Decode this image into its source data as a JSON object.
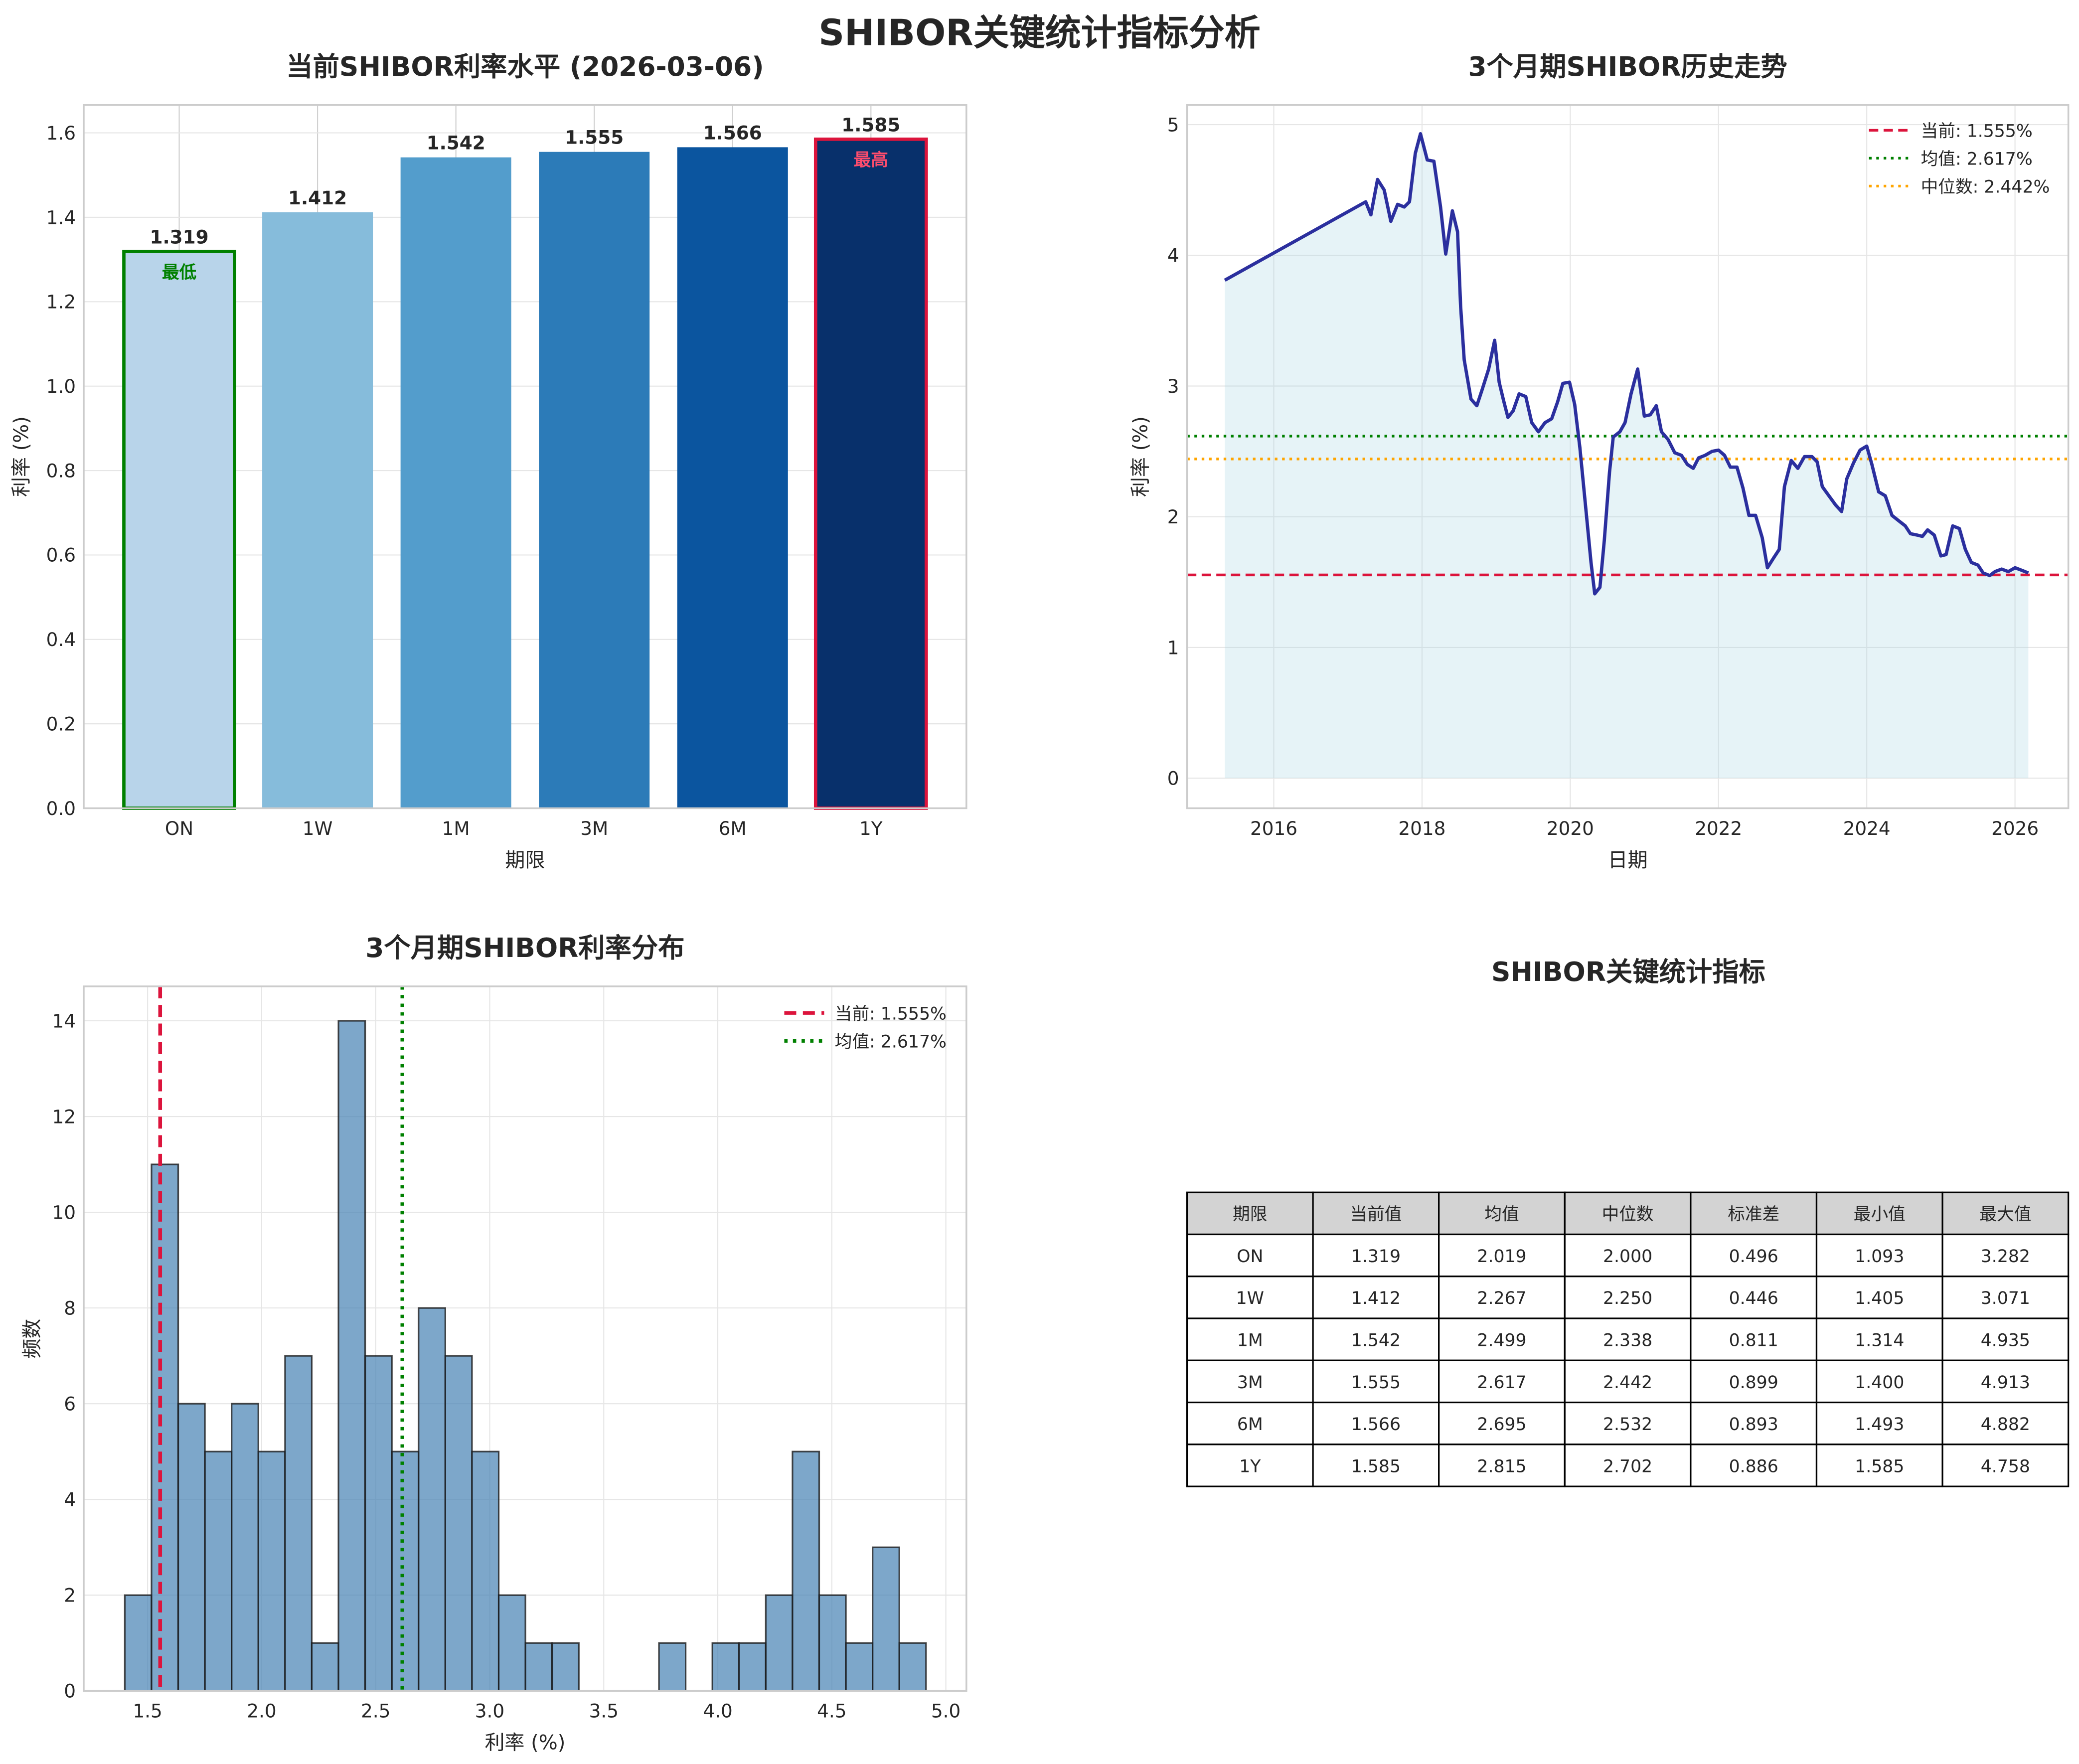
{
  "suptitle": "SHIBOR关键统计指标分析",
  "colors": {
    "bars": [
      "#b8d4ea",
      "#86bcdb",
      "#539dcc",
      "#2c7bb8",
      "#0b559f",
      "#08306b"
    ],
    "lowest_edge": "#008000",
    "highest_edge": "#dc143c",
    "line": "#2b2f9e",
    "fill": "#add8e6",
    "current": "#dc143c",
    "mean": "#008000",
    "median": "#ffa500",
    "hist": "#4682b4",
    "table_header": "#d3d3d3"
  },
  "chart_data": [
    {
      "type": "bar",
      "title": "当前SHIBOR利率水平 (2026-03-06)",
      "xlabel": "期限",
      "ylabel": "利率 (%)",
      "categories": [
        "ON",
        "1W",
        "1M",
        "3M",
        "6M",
        "1Y"
      ],
      "values": [
        1.319,
        1.412,
        1.542,
        1.555,
        1.566,
        1.585
      ],
      "value_labels": [
        "1.319",
        "1.412",
        "1.542",
        "1.555",
        "1.566",
        "1.585"
      ],
      "annotations": [
        {
          "category": "ON",
          "text": "最低"
        },
        {
          "category": "1Y",
          "text": "最高"
        }
      ],
      "ylim": [
        0,
        1.666
      ],
      "yticks": [
        0.0,
        0.2,
        0.4,
        0.6,
        0.8,
        1.0,
        1.2,
        1.4,
        1.6
      ],
      "ytick_labels": [
        "0.0",
        "0.2",
        "0.4",
        "0.6",
        "0.8",
        "1.0",
        "1.2",
        "1.4",
        "1.6"
      ],
      "grid": true
    },
    {
      "type": "line",
      "title": "3个月期SHIBOR历史走势",
      "xlabel": "日期",
      "ylabel": "利率 (%)",
      "xlim": [
        2014.83,
        2026.72
      ],
      "ylim": [
        -0.23,
        5.15
      ],
      "xticks": [
        2016,
        2018,
        2020,
        2022,
        2024,
        2026
      ],
      "xtick_labels": [
        "2016",
        "2018",
        "2020",
        "2022",
        "2024",
        "2026"
      ],
      "yticks": [
        0,
        1,
        2,
        3,
        4,
        5
      ],
      "ytick_labels": [
        "0",
        "1",
        "2",
        "3",
        "4",
        "5"
      ],
      "x": [
        2015.34,
        2017.24,
        2017.31,
        2017.4,
        2017.49,
        2017.58,
        2017.67,
        2017.76,
        2017.83,
        2017.91,
        2017.98,
        2018.07,
        2018.16,
        2018.25,
        2018.32,
        2018.41,
        2018.48,
        2018.52,
        2018.57,
        2018.66,
        2018.74,
        2018.81,
        2018.9,
        2018.98,
        2019.04,
        2019.1,
        2019.16,
        2019.23,
        2019.31,
        2019.4,
        2019.48,
        2019.57,
        2019.66,
        2019.75,
        2019.83,
        2019.9,
        2019.99,
        2020.06,
        2020.13,
        2020.21,
        2020.28,
        2020.33,
        2020.4,
        2020.46,
        2020.53,
        2020.58,
        2020.67,
        2020.74,
        2020.82,
        2020.91,
        2021.0,
        2021.08,
        2021.16,
        2021.23,
        2021.32,
        2021.41,
        2021.5,
        2021.58,
        2021.66,
        2021.73,
        2021.82,
        2021.91,
        2022.0,
        2022.08,
        2022.16,
        2022.25,
        2022.33,
        2022.41,
        2022.5,
        2022.59,
        2022.66,
        2022.75,
        2022.82,
        2022.89,
        2022.98,
        2023.07,
        2023.16,
        2023.26,
        2023.33,
        2023.4,
        2023.49,
        2023.58,
        2023.66,
        2023.73,
        2023.82,
        2023.91,
        2024.0,
        2024.07,
        2024.16,
        2024.25,
        2024.34,
        2024.43,
        2024.52,
        2024.59,
        2024.68,
        2024.75,
        2024.82,
        2024.91,
        2025.0,
        2025.07,
        2025.16,
        2025.25,
        2025.33,
        2025.41,
        2025.5,
        2025.57,
        2025.66,
        2025.73,
        2025.82,
        2025.91,
        2026.0,
        2026.09,
        2026.18
      ],
      "y": [
        3.81,
        4.41,
        4.31,
        4.58,
        4.5,
        4.26,
        4.39,
        4.37,
        4.41,
        4.78,
        4.93,
        4.73,
        4.72,
        4.37,
        4.01,
        4.34,
        4.18,
        3.61,
        3.2,
        2.9,
        2.85,
        2.97,
        3.13,
        3.35,
        3.03,
        2.89,
        2.76,
        2.81,
        2.94,
        2.92,
        2.72,
        2.65,
        2.72,
        2.75,
        2.88,
        3.02,
        3.03,
        2.86,
        2.53,
        2.06,
        1.65,
        1.41,
        1.46,
        1.82,
        2.34,
        2.61,
        2.65,
        2.72,
        2.94,
        3.13,
        2.77,
        2.78,
        2.85,
        2.65,
        2.59,
        2.49,
        2.47,
        2.4,
        2.37,
        2.45,
        2.47,
        2.5,
        2.51,
        2.47,
        2.38,
        2.38,
        2.22,
        2.01,
        2.01,
        1.84,
        1.61,
        1.69,
        1.75,
        2.23,
        2.43,
        2.37,
        2.46,
        2.46,
        2.42,
        2.23,
        2.16,
        2.09,
        2.04,
        2.29,
        2.41,
        2.51,
        2.54,
        2.4,
        2.19,
        2.16,
        2.01,
        1.97,
        1.93,
        1.87,
        1.86,
        1.85,
        1.9,
        1.86,
        1.7,
        1.71,
        1.93,
        1.91,
        1.75,
        1.65,
        1.63,
        1.57,
        1.55,
        1.58,
        1.6,
        1.58,
        1.61,
        1.59,
        1.57
      ],
      "hlines": [
        {
          "label": "当前: 1.555%",
          "value": 1.555,
          "style": "dashed",
          "color_key": "current"
        },
        {
          "label": "均值: 2.617%",
          "value": 2.617,
          "style": "dotted",
          "color_key": "mean"
        },
        {
          "label": "中位数: 2.442%",
          "value": 2.442,
          "style": "dotted",
          "color_key": "median"
        }
      ],
      "legend": "top-right",
      "grid": true
    },
    {
      "type": "bar",
      "subtype": "histogram",
      "title": "3个月期SHIBOR利率分布",
      "xlabel": "利率 (%)",
      "ylabel": "频数",
      "bin_start": 1.4,
      "bin_end": 4.913,
      "counts": [
        2,
        11,
        6,
        5,
        6,
        5,
        7,
        1,
        14,
        7,
        5,
        8,
        7,
        5,
        2,
        1,
        1,
        0,
        0,
        0,
        1,
        0,
        1,
        1,
        2,
        5,
        2,
        1,
        3,
        1
      ],
      "xlim": [
        1.22,
        5.09
      ],
      "ylim": [
        0,
        14.72
      ],
      "xticks": [
        1.5,
        2.0,
        2.5,
        3.0,
        3.5,
        4.0,
        4.5,
        5.0
      ],
      "xtick_labels": [
        "1.5",
        "2.0",
        "2.5",
        "3.0",
        "3.5",
        "4.0",
        "4.5",
        "5.0"
      ],
      "yticks": [
        0,
        2,
        4,
        6,
        8,
        10,
        12,
        14
      ],
      "ytick_labels": [
        "0",
        "2",
        "4",
        "6",
        "8",
        "10",
        "12",
        "14"
      ],
      "vlines": [
        {
          "label": "当前: 1.555%",
          "value": 1.555,
          "style": "dashed",
          "color_key": "current"
        },
        {
          "label": "均值: 2.617%",
          "value": 2.617,
          "style": "dotted",
          "color_key": "mean"
        }
      ],
      "legend": "top-right",
      "grid": true
    },
    {
      "type": "table",
      "title": "SHIBOR关键统计指标",
      "columns": [
        "期限",
        "当前值",
        "均值",
        "中位数",
        "标准差",
        "最小值",
        "最大值"
      ],
      "rows": [
        [
          "ON",
          "1.319",
          "2.019",
          "2.000",
          "0.496",
          "1.093",
          "3.282"
        ],
        [
          "1W",
          "1.412",
          "2.267",
          "2.250",
          "0.446",
          "1.405",
          "3.071"
        ],
        [
          "1M",
          "1.542",
          "2.499",
          "2.338",
          "0.811",
          "1.314",
          "4.935"
        ],
        [
          "3M",
          "1.555",
          "2.617",
          "2.442",
          "0.899",
          "1.400",
          "4.913"
        ],
        [
          "6M",
          "1.566",
          "2.695",
          "2.532",
          "0.893",
          "1.493",
          "4.882"
        ],
        [
          "1Y",
          "1.585",
          "2.815",
          "2.702",
          "0.886",
          "1.585",
          "4.758"
        ]
      ]
    }
  ]
}
